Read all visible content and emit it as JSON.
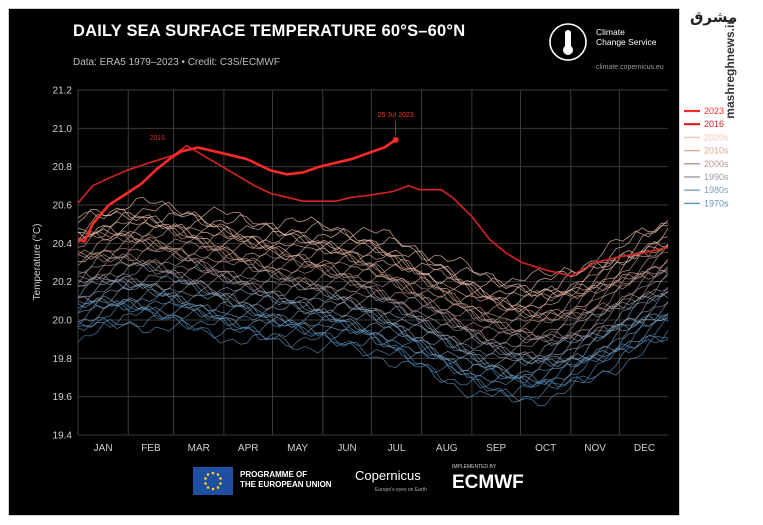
{
  "header": {
    "title": "DAILY SEA SURFACE TEMPERATURE 60°S–60°N",
    "subtitle": "Data: ERA5 1979–2023 • Credit: C3S/ECMWF"
  },
  "branding": {
    "ccs_name_line1": "Climate",
    "ccs_name_line2": "Change Service",
    "ccs_url": "climate.copernicus.eu",
    "eu_line1": "PROGRAMME OF",
    "eu_line2": "THE EUROPEAN UNION",
    "copernicus": "Copernicus",
    "copernicus_sub": "Europe's eyes on Earth",
    "implemented_by": "IMPLEMENTED BY",
    "ecmwf": "ECMWF",
    "watermark": "mashreghnews.ir",
    "watermark_fa": "مشرق"
  },
  "colors": {
    "background": "#000000",
    "y2023": "#ff2a2a",
    "y2016": "#d62222",
    "warm_decade": "#e8a58e",
    "cold_decade": "#5b93c0"
  },
  "chart_data": {
    "type": "line",
    "title": "DAILY SEA SURFACE TEMPERATURE 60°S–60°N",
    "ylabel": "Temperature (°C)",
    "xlabel": "",
    "ylim": [
      19.4,
      21.2
    ],
    "yticks": [
      "21.2",
      "21.0",
      "20.8",
      "20.6",
      "20.4",
      "20.2",
      "20.0",
      "19.8",
      "19.6",
      "19.4"
    ],
    "months": [
      "JAN",
      "FEB",
      "MAR",
      "APR",
      "MAY",
      "JUN",
      "JUL",
      "AUG",
      "SEP",
      "OCT",
      "NOV",
      "DEC"
    ],
    "legend": [
      {
        "label": "2023",
        "color": "#ff2a2a"
      },
      {
        "label": "2016",
        "color": "#d62222"
      },
      {
        "label": "2020s",
        "color": "#f3c6b3"
      },
      {
        "label": "2010s",
        "color": "#d9a996"
      },
      {
        "label": "2000s",
        "color": "#b8958d"
      },
      {
        "label": "1990s",
        "color": "#9c9aa8"
      },
      {
        "label": "1980s",
        "color": "#7aa0bd"
      },
      {
        "label": "1970s",
        "color": "#5b93c0"
      }
    ],
    "series": [
      {
        "name": "2023",
        "color": "#ff2a2a",
        "points": [
          [
            1,
            20.42
          ],
          [
            5,
            20.41
          ],
          [
            10,
            20.5
          ],
          [
            20,
            20.6
          ],
          [
            31,
            20.66
          ],
          [
            40,
            20.71
          ],
          [
            50,
            20.79
          ],
          [
            59,
            20.85
          ],
          [
            65,
            20.88
          ],
          [
            75,
            20.9
          ],
          [
            90,
            20.87
          ],
          [
            105,
            20.84
          ],
          [
            120,
            20.78
          ],
          [
            130,
            20.76
          ],
          [
            140,
            20.77
          ],
          [
            150,
            20.8
          ],
          [
            160,
            20.82
          ],
          [
            170,
            20.84
          ],
          [
            180,
            20.87
          ],
          [
            190,
            20.9
          ],
          [
            197,
            20.94
          ]
        ],
        "width": 2.6
      },
      {
        "name": "2016",
        "color": "#d62222",
        "points": [
          [
            1,
            20.61
          ],
          [
            10,
            20.7
          ],
          [
            20,
            20.74
          ],
          [
            31,
            20.78
          ],
          [
            45,
            20.82
          ],
          [
            60,
            20.86
          ],
          [
            68,
            20.91
          ],
          [
            80,
            20.85
          ],
          [
            90,
            20.8
          ],
          [
            100,
            20.75
          ],
          [
            110,
            20.7
          ],
          [
            120,
            20.66
          ],
          [
            130,
            20.64
          ],
          [
            140,
            20.62
          ],
          [
            150,
            20.62
          ],
          [
            160,
            20.62
          ],
          [
            170,
            20.64
          ],
          [
            180,
            20.65
          ],
          [
            195,
            20.67
          ],
          [
            205,
            20.7
          ],
          [
            212,
            20.68
          ],
          [
            225,
            20.68
          ],
          [
            232,
            20.64
          ],
          [
            244,
            20.54
          ],
          [
            255,
            20.42
          ],
          [
            265,
            20.35
          ],
          [
            275,
            20.3
          ],
          [
            290,
            20.26
          ],
          [
            305,
            20.23
          ],
          [
            320,
            20.3
          ],
          [
            335,
            20.33
          ],
          [
            350,
            20.35
          ],
          [
            365,
            20.38
          ]
        ],
        "width": 1.6
      }
    ],
    "decade_baselines": [
      {
        "decade": "2020s",
        "offset": 0.05
      },
      {
        "decade": "2010s",
        "offset": -0.05
      },
      {
        "decade": "2000s",
        "offset": -0.15
      },
      {
        "decade": "1990s",
        "offset": -0.25
      },
      {
        "decade": "1980s",
        "offset": -0.35
      },
      {
        "decade": "1970s",
        "offset": -0.45
      }
    ],
    "annotations": [
      {
        "text": "2016",
        "x": 50,
        "y": 20.94,
        "color": "#d62222"
      },
      {
        "text": "25 Jul 2023",
        "x": 197,
        "y": 21.06,
        "color": "#ff2a2a"
      }
    ]
  }
}
